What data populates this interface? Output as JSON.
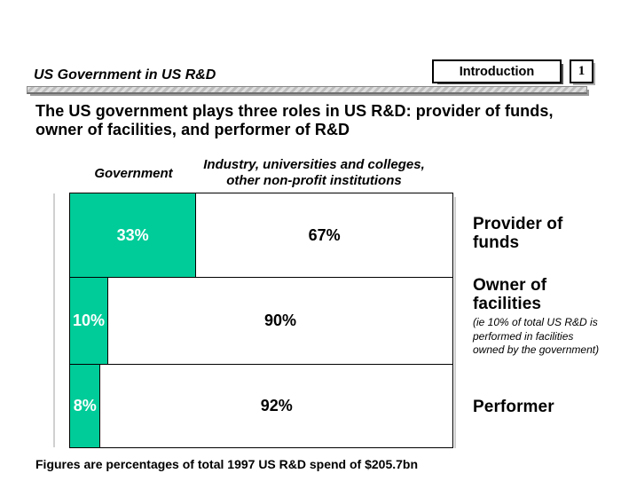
{
  "slide": {
    "header": {
      "title": "US Government in US R&D",
      "section": "Introduction",
      "page": "1"
    },
    "headline": "The US government plays three roles in US R&D: provider of funds, owner of facilities, and performer of R&D",
    "columns": {
      "left": "Government",
      "right": "Industry, universities and colleges, other non-profit institutions"
    },
    "bars": [
      {
        "gov": "33%",
        "rest": "67%"
      },
      {
        "gov": "10%",
        "rest": "90%"
      },
      {
        "gov": "8%",
        "rest": "92%"
      }
    ],
    "row_labels": [
      {
        "title": "Provider of funds"
      },
      {
        "title": "Owner of facilities",
        "note": "(ie 10% of total US R&D is performed in facilities owned by the government)"
      },
      {
        "title": "Performer"
      }
    ],
    "footnote": "Figures are percentages of total 1997 US R&D spend of $205.7bn"
  },
  "colors": {
    "government_fill": "#00CC99",
    "bar_border": "#000000",
    "divider_gray": "#bdbdbd"
  },
  "chart_data": {
    "type": "bar",
    "orientation": "horizontal",
    "stacked": true,
    "categories": [
      "Provider of funds",
      "Owner of facilities",
      "Performer"
    ],
    "series": [
      {
        "name": "Government",
        "values": [
          33,
          10,
          8
        ],
        "color": "#00CC99"
      },
      {
        "name": "Industry, universities and colleges, other non-profit institutions",
        "values": [
          67,
          90,
          92
        ],
        "color": "#FFFFFF"
      }
    ],
    "value_format": "percent",
    "xlim": [
      0,
      100
    ],
    "data_labels": true,
    "grid": false,
    "legend_position": "above-as-column-headers",
    "note": "Figures are percentages of total 1997 US R&D spend of $205.7bn"
  }
}
